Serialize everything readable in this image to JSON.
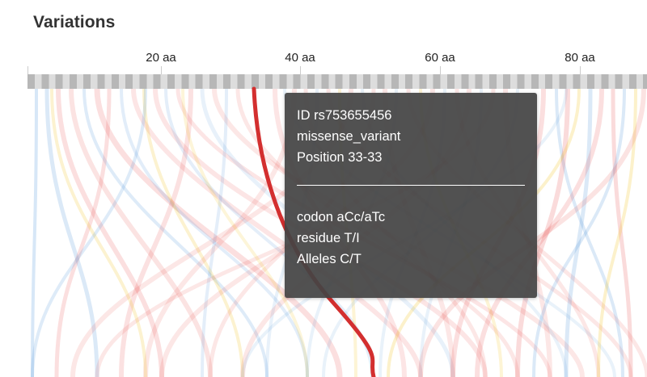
{
  "panel": {
    "title": "Variations"
  },
  "axis": {
    "ticks": [
      "20 aa",
      "40 aa",
      "60 aa",
      "80 aa"
    ]
  },
  "colors": {
    "missense": "#e53935",
    "synonymous": "#4a90d9",
    "other": "#f2c014",
    "highlight": "#d32f2f"
  },
  "tooltip": {
    "id": "ID rs753655456",
    "type": "missense_variant",
    "position": "Position 33-33",
    "codon": "codon aCc/aTc",
    "residue": "residue T/I",
    "alleles": "Alleles C/T"
  }
}
